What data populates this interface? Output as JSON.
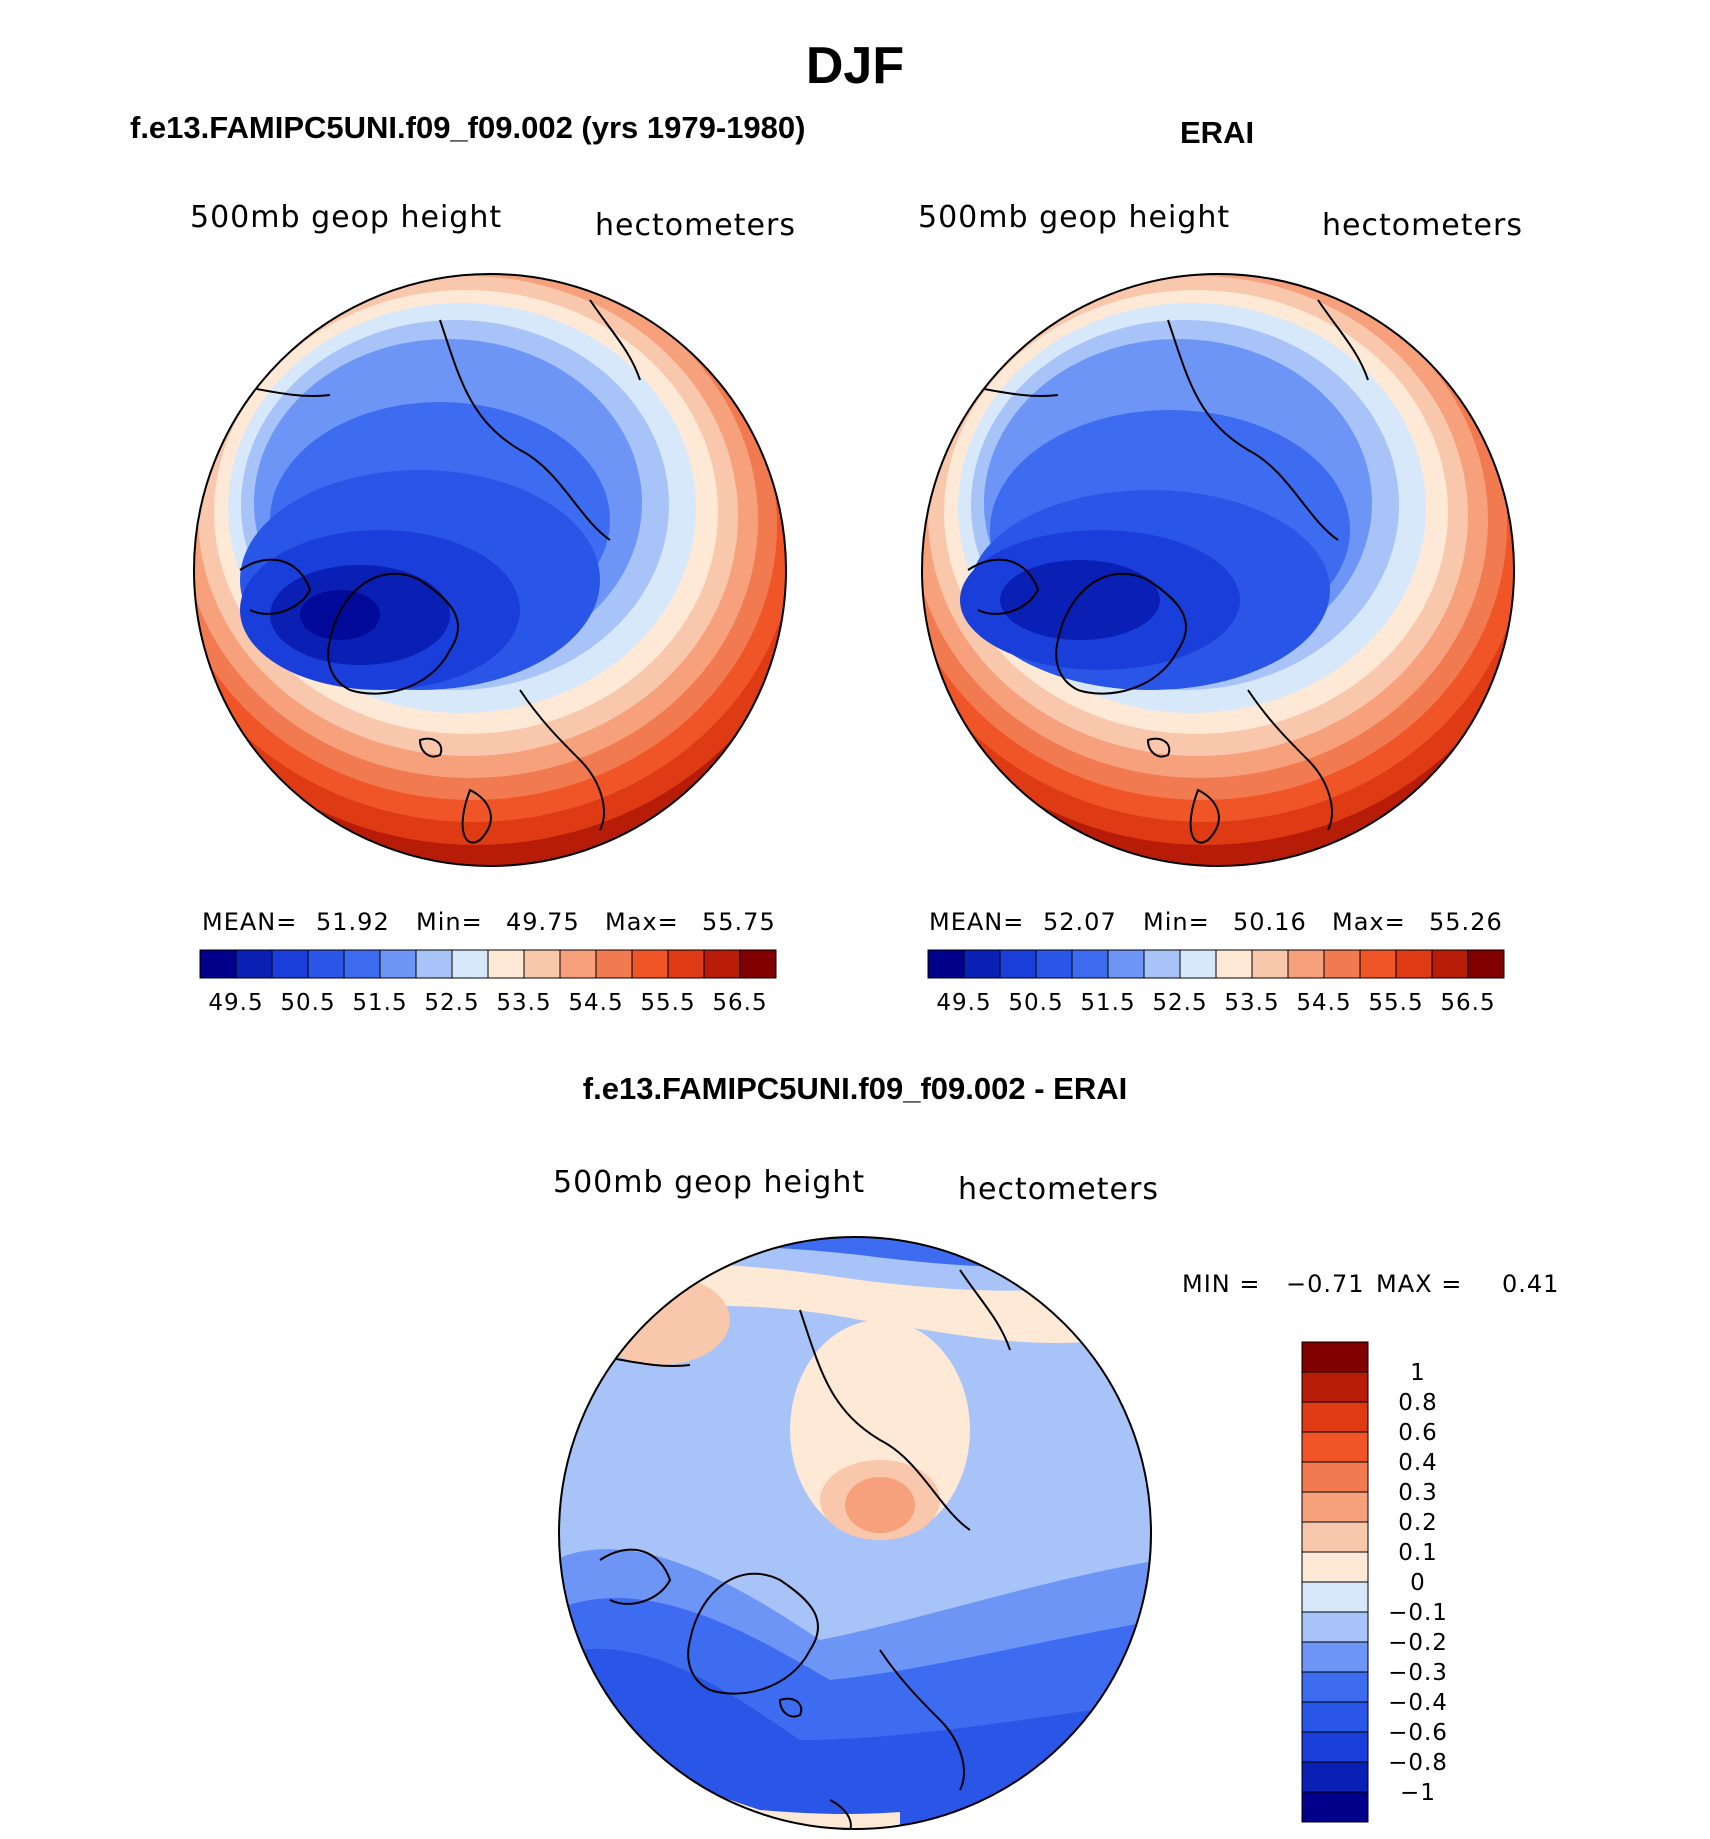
{
  "main_title": "DJF",
  "panels": {
    "left": {
      "title": "f.e13.FAMIPC5UNI.f09_f09.002 (yrs 1979-1980)",
      "variable": "500mb  geop  height",
      "units": "hectometers",
      "mean_label": "MEAN=",
      "mean": "51.92",
      "min_label": "Min=",
      "min": "49.75",
      "max_label": "Max=",
      "max": "55.75"
    },
    "right": {
      "title": "ERAI",
      "variable": "500mb  geop  height",
      "units": "hectometers",
      "mean_label": "MEAN=",
      "mean": "52.07",
      "min_label": "Min=",
      "min": "50.16",
      "max_label": "Max=",
      "max": "55.26"
    },
    "diff": {
      "title": "f.e13.FAMIPC5UNI.f09_f09.002 - ERAI",
      "variable": "500mb  geop  height",
      "units": "hectometers",
      "min_label": "MIN =",
      "min": "−0.71",
      "max_label": "MAX =",
      "max": "0.41"
    }
  },
  "chart_data": [
    {
      "type": "heatmap",
      "title": "f.e13.FAMIPC5UNI.f09_f09.002 (yrs 1979-1980)",
      "projection": "north-polar-stereographic",
      "variable": "500mb geop height",
      "units": "hectometers",
      "mean": 51.92,
      "min": 49.75,
      "max": 55.75,
      "levels": [
        49.5,
        50,
        50.5,
        51,
        51.5,
        52,
        52.5,
        53,
        53.5,
        54,
        54.5,
        55,
        55.5,
        56,
        56.5
      ],
      "colorbar_ticks": [
        "49.5",
        "50.5",
        "51.5",
        "52.5",
        "53.5",
        "54.5",
        "55.5",
        "56.5"
      ],
      "colorbar_colors": [
        "#00008b",
        "#0a1fb4",
        "#1a3ed9",
        "#2a56e8",
        "#3d6cf0",
        "#6d95f5",
        "#a7c3f8",
        "#d8e8fb",
        "#fde9d6",
        "#f9c7ab",
        "#f6a07c",
        "#f27a50",
        "#f05528",
        "#de3a13",
        "#b71c08",
        "#800000"
      ]
    },
    {
      "type": "heatmap",
      "title": "ERAI",
      "projection": "north-polar-stereographic",
      "variable": "500mb geop height",
      "units": "hectometers",
      "mean": 52.07,
      "min": 50.16,
      "max": 55.26,
      "levels": [
        49.5,
        50,
        50.5,
        51,
        51.5,
        52,
        52.5,
        53,
        53.5,
        54,
        54.5,
        55,
        55.5,
        56,
        56.5
      ],
      "colorbar_ticks": [
        "49.5",
        "50.5",
        "51.5",
        "52.5",
        "53.5",
        "54.5",
        "55.5",
        "56.5"
      ],
      "colorbar_colors": [
        "#00008b",
        "#0a1fb4",
        "#1a3ed9",
        "#2a56e8",
        "#3d6cf0",
        "#6d95f5",
        "#a7c3f8",
        "#d8e8fb",
        "#fde9d6",
        "#f9c7ab",
        "#f6a07c",
        "#f27a50",
        "#f05528",
        "#de3a13",
        "#b71c08",
        "#800000"
      ]
    },
    {
      "type": "heatmap",
      "title": "f.e13.FAMIPC5UNI.f09_f09.002 - ERAI",
      "projection": "north-polar-stereographic",
      "variable": "500mb geop height",
      "units": "hectometers",
      "min": -0.71,
      "max": 0.41,
      "levels": [
        -1,
        -0.8,
        -0.6,
        -0.4,
        -0.3,
        -0.2,
        -0.1,
        0,
        0.1,
        0.2,
        0.3,
        0.4,
        0.6,
        0.8,
        1
      ],
      "colorbar_ticks": [
        "1",
        "0.8",
        "0.6",
        "0.4",
        "0.3",
        "0.2",
        "0.1",
        "0",
        "−0.1",
        "−0.2",
        "−0.3",
        "−0.4",
        "−0.6",
        "−0.8",
        "−1"
      ],
      "colorbar_colors": [
        "#800000",
        "#b71c08",
        "#de3a13",
        "#f05528",
        "#f27a50",
        "#f6a07c",
        "#f9c7ab",
        "#fde9d6",
        "#d8e8fb",
        "#a7c3f8",
        "#6d95f5",
        "#3d6cf0",
        "#2a56e8",
        "#1a3ed9",
        "#0a1fb4",
        "#00008b"
      ]
    }
  ]
}
